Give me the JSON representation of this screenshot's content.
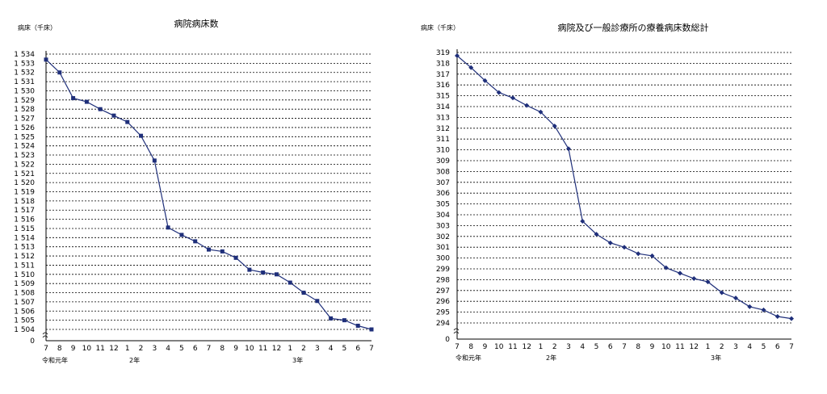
{
  "chart_data": [
    {
      "type": "line",
      "title": "病院病床数",
      "unit_label": "病床（千床）",
      "y_tick_labels": [
        "1 534",
        "1 533",
        "1 532",
        "1 531",
        "1 530",
        "1 529",
        "1 528",
        "1 527",
        "1 526",
        "1 525",
        "1 524",
        "1 523",
        "1 522",
        "1 521",
        "1 520",
        "1 519",
        "1 518",
        "1 517",
        "1 516",
        "1 515",
        "1 514",
        "1 513",
        "1 512",
        "1 511",
        "1 510",
        "1 509",
        "1 508",
        "1 507",
        "1 506",
        "1 505",
        "1 504"
      ],
      "y_zero_label": "0",
      "ylim": [
        1504,
        1534
      ],
      "y_axis_break": true,
      "x_tick_labels": [
        "7",
        "8",
        "9",
        "10",
        "11",
        "12",
        "1",
        "2",
        "3",
        "4",
        "5",
        "6",
        "7",
        "8",
        "9",
        "10",
        "11",
        "12",
        "1",
        "2",
        "3",
        "4",
        "5",
        "6",
        "7"
      ],
      "year_labels": [
        {
          "at_index": 0,
          "text": "令和元年"
        },
        {
          "at_index": 6,
          "text": "2年"
        },
        {
          "at_index": 18,
          "text": "3年"
        }
      ],
      "marker": "square",
      "color": "#1f2f7a",
      "grid": true,
      "values": [
        1533.4,
        1532.0,
        1529.2,
        1528.8,
        1528.0,
        1527.3,
        1526.6,
        1525.1,
        1522.4,
        1515.1,
        1514.3,
        1513.6,
        1512.7,
        1512.5,
        1511.8,
        1510.5,
        1510.2,
        1510.0,
        1509.1,
        1508.0,
        1507.1,
        1505.2,
        1505.0,
        1504.4,
        1504.0
      ]
    },
    {
      "type": "line",
      "title": "病院及び一般診療所の療養病床数総計",
      "unit_label": "病床（千床）",
      "y_tick_labels": [
        "319",
        "318",
        "317",
        "316",
        "315",
        "314",
        "313",
        "312",
        "311",
        "310",
        "309",
        "308",
        "307",
        "306",
        "305",
        "304",
        "303",
        "302",
        "301",
        "300",
        "299",
        "298",
        "297",
        "296",
        "295",
        "294"
      ],
      "y_zero_label": "0",
      "ylim": [
        294,
        319
      ],
      "y_axis_break": true,
      "x_tick_labels": [
        "7",
        "8",
        "9",
        "10",
        "11",
        "12",
        "1",
        "2",
        "3",
        "4",
        "5",
        "6",
        "7",
        "8",
        "9",
        "10",
        "11",
        "12",
        "1",
        "2",
        "3",
        "4",
        "5",
        "6",
        "7"
      ],
      "year_labels": [
        {
          "at_index": 0,
          "text": "令和元年"
        },
        {
          "at_index": 6,
          "text": "2年"
        },
        {
          "at_index": 18,
          "text": "3年"
        }
      ],
      "marker": "diamond",
      "color": "#1f2f7a",
      "grid": true,
      "values": [
        318.7,
        317.6,
        316.4,
        315.3,
        314.8,
        314.1,
        313.5,
        312.2,
        310.1,
        303.4,
        302.2,
        301.4,
        301.0,
        300.4,
        300.2,
        299.1,
        298.6,
        298.1,
        297.8,
        296.8,
        296.3,
        295.5,
        295.2,
        294.6,
        294.4
      ]
    }
  ]
}
